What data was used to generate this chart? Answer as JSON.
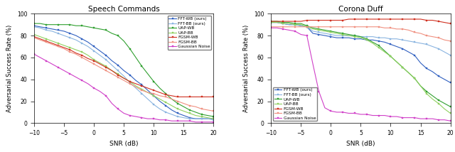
{
  "snr": [
    -10,
    -9,
    -8,
    -7,
    -6,
    -5,
    -4,
    -3,
    -2,
    -1,
    0,
    1,
    2,
    3,
    4,
    5,
    6,
    7,
    8,
    9,
    10,
    11,
    12,
    13,
    14,
    15,
    16,
    17,
    18,
    19,
    20
  ],
  "speech": {
    "FFT_WB": [
      89,
      88,
      87,
      86,
      85,
      84,
      82,
      80,
      77,
      74,
      70,
      66,
      62,
      57,
      53,
      48,
      44,
      39,
      35,
      30,
      25,
      20,
      16,
      12,
      9,
      7,
      5,
      4,
      4,
      4,
      4
    ],
    "FFT_BB": [
      88,
      87,
      85,
      84,
      82,
      80,
      78,
      76,
      73,
      70,
      66,
      62,
      58,
      53,
      48,
      43,
      37,
      32,
      27,
      22,
      17,
      13,
      10,
      8,
      6,
      5,
      4,
      4,
      4,
      4,
      3
    ],
    "UAP_WB": [
      91,
      91,
      90,
      90,
      90,
      90,
      90,
      89,
      89,
      88,
      87,
      86,
      85,
      82,
      80,
      75,
      68,
      60,
      52,
      45,
      38,
      32,
      27,
      22,
      18,
      15,
      12,
      10,
      8,
      7,
      6
    ],
    "UAP_BB": [
      81,
      79,
      77,
      75,
      73,
      71,
      69,
      67,
      65,
      62,
      58,
      55,
      52,
      48,
      45,
      41,
      38,
      34,
      31,
      28,
      25,
      22,
      19,
      16,
      13,
      11,
      9,
      7,
      6,
      5,
      4
    ],
    "FGSM_WB": [
      79,
      77,
      75,
      73,
      71,
      69,
      67,
      64,
      62,
      59,
      57,
      54,
      51,
      48,
      44,
      41,
      38,
      36,
      34,
      32,
      30,
      28,
      26,
      25,
      24,
      24,
      24,
      24,
      24,
      24,
      24
    ],
    "FGSM_BB": [
      78,
      76,
      74,
      72,
      70,
      68,
      65,
      63,
      60,
      57,
      54,
      51,
      48,
      45,
      42,
      39,
      36,
      33,
      30,
      28,
      27,
      25,
      24,
      22,
      20,
      18,
      16,
      15,
      13,
      12,
      11
    ],
    "Gaussian": [
      63,
      60,
      57,
      54,
      51,
      48,
      45,
      42,
      39,
      36,
      32,
      29,
      25,
      18,
      13,
      9,
      7,
      6,
      5,
      4,
      4,
      3,
      3,
      2,
      2,
      2,
      2,
      1,
      1,
      1,
      1
    ]
  },
  "corona": {
    "FFT_WB": [
      92,
      92,
      91,
      90,
      90,
      89,
      88,
      82,
      81,
      80,
      79,
      78,
      78,
      78,
      77,
      77,
      76,
      76,
      75,
      74,
      72,
      70,
      68,
      65,
      62,
      55,
      50,
      47,
      43,
      40,
      37
    ],
    "FFT_BB": [
      92,
      92,
      91,
      90,
      90,
      89,
      88,
      84,
      83,
      82,
      81,
      80,
      80,
      80,
      80,
      79,
      79,
      79,
      78,
      78,
      77,
      77,
      76,
      75,
      74,
      73,
      72,
      70,
      68,
      65,
      62
    ],
    "UAP_WB": [
      93,
      93,
      92,
      92,
      91,
      91,
      89,
      87,
      86,
      85,
      84,
      83,
      82,
      81,
      80,
      79,
      77,
      74,
      71,
      66,
      61,
      56,
      51,
      46,
      41,
      34,
      29,
      25,
      21,
      18,
      15
    ],
    "UAP_BB": [
      92,
      92,
      91,
      91,
      90,
      90,
      88,
      86,
      85,
      84,
      83,
      82,
      81,
      80,
      79,
      78,
      76,
      73,
      69,
      65,
      61,
      56,
      51,
      46,
      41,
      34,
      27,
      22,
      18,
      13,
      9
    ],
    "FGSM_WB": [
      93,
      93,
      93,
      93,
      93,
      93,
      94,
      94,
      94,
      94,
      94,
      94,
      94,
      95,
      95,
      95,
      95,
      95,
      95,
      95,
      95,
      95,
      95,
      95,
      95,
      95,
      94,
      94,
      93,
      92,
      91
    ],
    "FGSM_BB": [
      88,
      88,
      88,
      88,
      88,
      88,
      88,
      88,
      88,
      88,
      88,
      88,
      88,
      88,
      88,
      88,
      88,
      88,
      88,
      87,
      87,
      86,
      86,
      85,
      83,
      82,
      80,
      79,
      78,
      76,
      75
    ],
    "Gaussian": [
      87,
      87,
      86,
      85,
      84,
      81,
      80,
      54,
      29,
      14,
      11,
      10,
      10,
      9,
      9,
      8,
      8,
      7,
      7,
      7,
      6,
      6,
      5,
      5,
      5,
      4,
      4,
      4,
      3,
      3,
      2
    ]
  },
  "colors": {
    "FFT_WB": "#3060c0",
    "FFT_BB": "#8ab4e0",
    "UAP_WB": "#30a030",
    "UAP_BB": "#90d060",
    "FGSM_WB": "#d03020",
    "FGSM_BB": "#f09080",
    "Gaussian": "#d040c8"
  },
  "labels": {
    "FFT_WB": "FFT-WB (ours)",
    "FFT_BB": "FFT-BB (ours)",
    "UAP_WB": "UAP-WB",
    "UAP_BB": "UAP-BB",
    "FGSM_WB": "FGSM-WB",
    "FGSM_BB": "FGSM-BB",
    "Gaussian": "Gaussian Noise"
  },
  "title_left": "Speech Commands",
  "title_right": "Corona Duff",
  "xlabel": "SNR (dB)",
  "ylabel": "Adversarial Success Rate (%)",
  "ylim": [
    0,
    100
  ],
  "xlim": [
    -10,
    20
  ],
  "xticks": [
    -10,
    -5,
    0,
    5,
    10,
    15,
    20
  ],
  "yticks": [
    0,
    20,
    40,
    60,
    80,
    100
  ]
}
